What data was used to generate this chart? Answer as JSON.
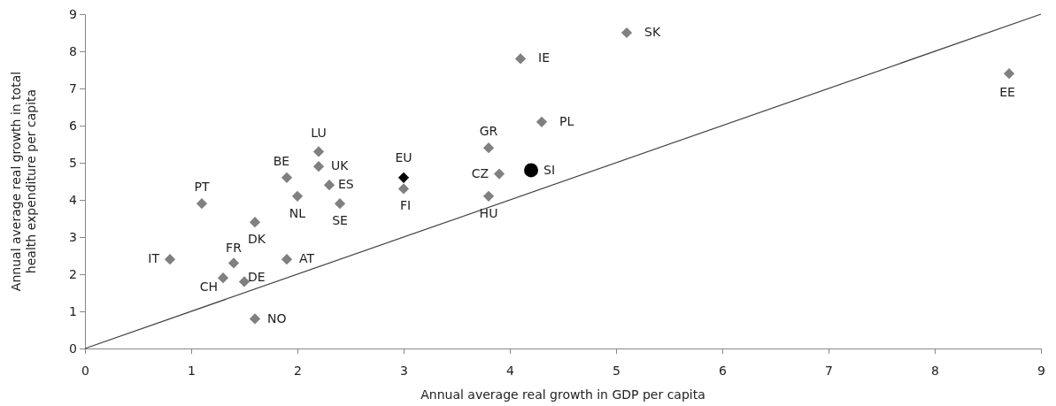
{
  "chart_data": {
    "type": "scatter",
    "xlabel": "Annual average real growth in GDP per capita",
    "ylabel": "Annual average real growth in total health expenditure per capita",
    "xlim": [
      0,
      9
    ],
    "ylim": [
      0,
      9
    ],
    "xticks": [
      0,
      1,
      2,
      3,
      4,
      5,
      6,
      7,
      8,
      9
    ],
    "yticks": [
      0,
      1,
      2,
      3,
      4,
      5,
      6,
      7,
      8,
      9
    ],
    "grid": false,
    "series": [
      {
        "marker": "diamond",
        "color": "#808080",
        "x": [
          5.1,
          4.1,
          4.3,
          8.7,
          3.8,
          3.9,
          3.8,
          3.0,
          2.2,
          2.2,
          2.3,
          2.4,
          1.9,
          2.0,
          1.1,
          1.6,
          0.8,
          1.4,
          1.9,
          1.3,
          1.5,
          1.6
        ],
        "values": [
          8.5,
          7.8,
          6.1,
          7.4,
          5.4,
          4.7,
          4.1,
          4.3,
          5.3,
          4.9,
          4.4,
          3.9,
          4.6,
          4.1,
          3.9,
          3.4,
          2.4,
          2.3,
          2.4,
          1.9,
          1.8,
          0.8
        ]
      },
      {
        "marker": "diamond",
        "color": "#000000",
        "x": [
          3.0
        ],
        "values": [
          4.6
        ]
      },
      {
        "marker": "circle",
        "color": "#000000",
        "x": [
          4.2
        ],
        "values": [
          4.8
        ]
      },
      {
        "type": "line",
        "marker": "none",
        "color": "#404040",
        "x": [
          0,
          9
        ],
        "values": [
          0,
          9
        ]
      }
    ],
    "annotations": [
      {
        "text": "SK",
        "x": 5.1,
        "y": 8.5
      },
      {
        "text": "IE",
        "x": 4.1,
        "y": 7.8
      },
      {
        "text": "PL",
        "x": 4.3,
        "y": 6.1
      },
      {
        "text": "EE",
        "x": 8.7,
        "y": 7.4
      },
      {
        "text": "GR",
        "x": 3.8,
        "y": 5.4
      },
      {
        "text": "CZ",
        "x": 3.9,
        "y": 4.7
      },
      {
        "text": "HU",
        "x": 3.8,
        "y": 4.1
      },
      {
        "text": "FI",
        "x": 3.0,
        "y": 4.3
      },
      {
        "text": "LU",
        "x": 2.2,
        "y": 5.3
      },
      {
        "text": "UK",
        "x": 2.2,
        "y": 4.9
      },
      {
        "text": "ES",
        "x": 2.3,
        "y": 4.4
      },
      {
        "text": "SE",
        "x": 2.4,
        "y": 3.9
      },
      {
        "text": "BE",
        "x": 1.9,
        "y": 4.6
      },
      {
        "text": "NL",
        "x": 2.0,
        "y": 4.1
      },
      {
        "text": "PT",
        "x": 1.1,
        "y": 3.9
      },
      {
        "text": "DK",
        "x": 1.6,
        "y": 3.4
      },
      {
        "text": "IT",
        "x": 0.8,
        "y": 2.4
      },
      {
        "text": "FR",
        "x": 1.4,
        "y": 2.3
      },
      {
        "text": "AT",
        "x": 1.9,
        "y": 2.4
      },
      {
        "text": "CH",
        "x": 1.3,
        "y": 1.9
      },
      {
        "text": "DE",
        "x": 1.5,
        "y": 1.8
      },
      {
        "text": "NO",
        "x": 1.6,
        "y": 0.8
      },
      {
        "text": "EU",
        "x": 3.0,
        "y": 4.6
      },
      {
        "text": "SI",
        "x": 4.2,
        "y": 4.8
      }
    ]
  }
}
